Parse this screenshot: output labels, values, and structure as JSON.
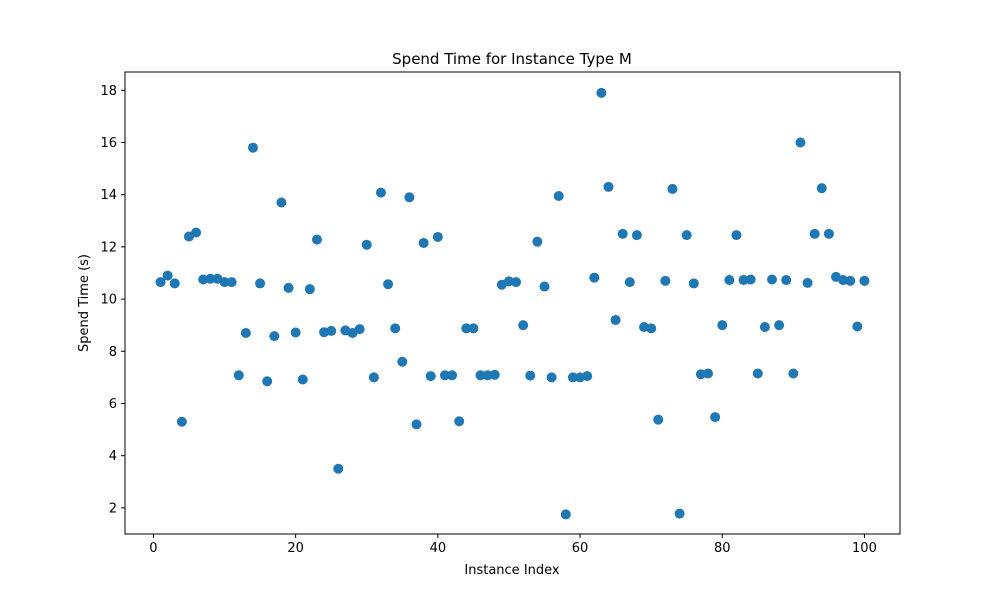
{
  "chart_data": {
    "type": "scatter",
    "title": "Spend Time for Instance Type M",
    "xlabel": "Instance Index",
    "ylabel": "Spend Time (s)",
    "xlim": [
      -4,
      105
    ],
    "ylim": [
      1.0,
      18.7
    ],
    "xticks": [
      0,
      20,
      40,
      60,
      80,
      100
    ],
    "yticks": [
      2,
      4,
      6,
      8,
      10,
      12,
      14,
      16,
      18
    ],
    "grid": false,
    "marker_color": "#1f77b4",
    "x": [
      1,
      2,
      3,
      4,
      5,
      6,
      7,
      8,
      9,
      10,
      11,
      12,
      13,
      14,
      15,
      16,
      17,
      18,
      19,
      20,
      21,
      22,
      23,
      24,
      25,
      26,
      27,
      28,
      29,
      30,
      31,
      32,
      33,
      34,
      35,
      36,
      37,
      38,
      39,
      40,
      41,
      42,
      43,
      44,
      45,
      46,
      47,
      48,
      49,
      50,
      51,
      52,
      53,
      54,
      55,
      56,
      57,
      58,
      59,
      60,
      61,
      62,
      63,
      64,
      65,
      66,
      67,
      68,
      69,
      70,
      71,
      72,
      73,
      74,
      75,
      76,
      77,
      78,
      79,
      80,
      81,
      82,
      83,
      84,
      85,
      86,
      87,
      88,
      89,
      90,
      91,
      92,
      93,
      94,
      95,
      96,
      97,
      98,
      99,
      100
    ],
    "y": [
      10.65,
      10.9,
      10.6,
      5.3,
      12.4,
      12.55,
      10.75,
      10.78,
      10.78,
      10.65,
      10.65,
      7.08,
      8.7,
      15.8,
      10.6,
      6.85,
      8.58,
      13.7,
      10.43,
      8.72,
      6.92,
      10.38,
      12.28,
      8.73,
      8.78,
      3.5,
      8.8,
      8.7,
      8.85,
      12.08,
      7.0,
      14.08,
      10.57,
      8.88,
      7.6,
      13.9,
      5.2,
      12.15,
      7.05,
      12.38,
      7.08,
      7.08,
      5.32,
      8.88,
      8.88,
      7.08,
      7.08,
      7.1,
      10.55,
      10.68,
      10.65,
      9.0,
      7.07,
      12.2,
      10.48,
      7.0,
      13.95,
      1.75,
      7.0,
      7.0,
      7.05,
      10.82,
      17.9,
      14.3,
      9.2,
      12.5,
      10.65,
      12.45,
      8.93,
      8.88,
      5.38,
      10.7,
      14.22,
      1.78,
      12.45,
      10.6,
      7.12,
      7.15,
      5.48,
      9.0,
      10.73,
      12.45,
      10.73,
      10.75,
      7.15,
      8.93,
      10.75,
      9.0,
      10.73,
      7.15,
      16.0,
      10.62,
      12.5,
      14.25,
      12.5,
      10.85,
      10.73,
      10.7,
      8.95,
      10.7
    ]
  }
}
